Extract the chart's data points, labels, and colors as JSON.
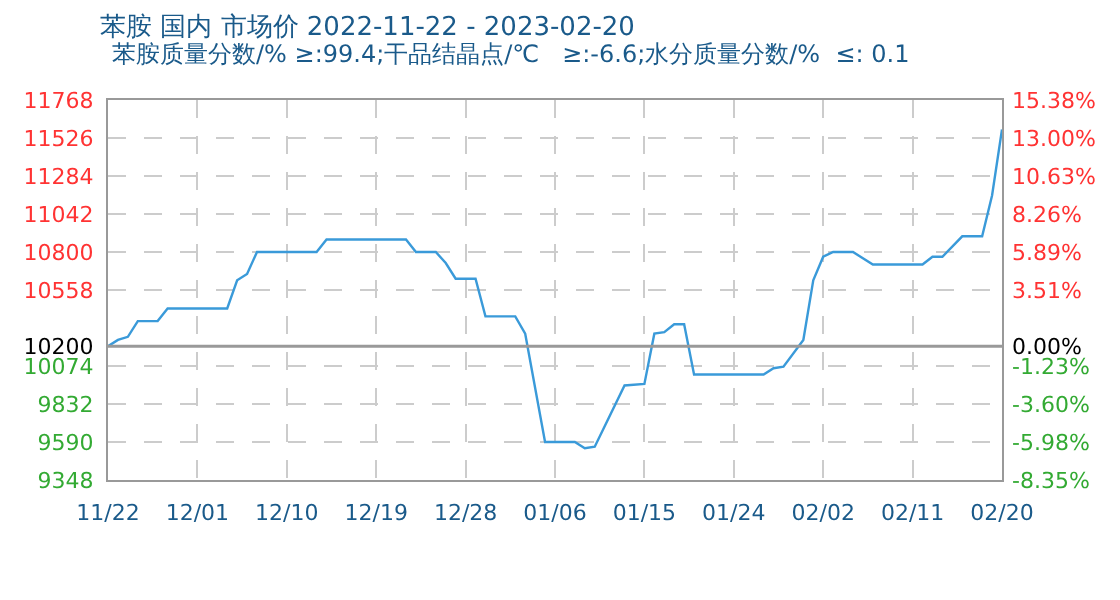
{
  "chart_data": {
    "type": "line",
    "title": "苯胺 国内 市场价 2022-11-22 - 2023-02-20",
    "subtitle": "苯胺质量分数/% ≥:99.4;干品结晶点/℃   ≥:-6.6;水分质量分数/%  ≤: 0.1",
    "x": [
      "2022-11-22",
      "2022-11-23",
      "2022-11-24",
      "2022-11-25",
      "2022-11-27",
      "2022-11-28",
      "2022-12-04",
      "2022-12-05",
      "2022-12-06",
      "2022-12-07",
      "2022-12-13",
      "2022-12-14",
      "2022-12-22",
      "2022-12-23",
      "2022-12-25",
      "2022-12-26",
      "2022-12-27",
      "2022-12-29",
      "2022-12-30",
      "2023-01-02",
      "2023-01-03",
      "2023-01-05",
      "2023-01-08",
      "2023-01-09",
      "2023-01-10",
      "2023-01-13",
      "2023-01-15",
      "2023-01-16",
      "2023-01-17",
      "2023-01-18",
      "2023-01-19",
      "2023-01-20",
      "2023-01-27",
      "2023-01-28",
      "2023-01-29",
      "2023-01-31",
      "2023-02-01",
      "2023-02-02",
      "2023-02-03",
      "2023-02-05",
      "2023-02-07",
      "2023-02-12",
      "2023-02-13",
      "2023-02-14",
      "2023-02-16",
      "2023-02-18",
      "2023-02-19",
      "2023-02-20"
    ],
    "series": [
      {
        "color": "#3a9ad9",
        "values": [
          10200,
          10240,
          10260,
          10360,
          10360,
          10440,
          10440,
          10620,
          10660,
          10800,
          10800,
          10880,
          10880,
          10800,
          10800,
          10730,
          10630,
          10630,
          10390,
          10390,
          10280,
          9590,
          9590,
          9550,
          9560,
          9950,
          9960,
          10280,
          10290,
          10340,
          10340,
          10020,
          10020,
          10060,
          10070,
          10240,
          10620,
          10770,
          10800,
          10800,
          10720,
          10720,
          10770,
          10770,
          10900,
          10900,
          11160,
          11580
        ]
      }
    ],
    "xlim": [
      "2022-11-22",
      "2023-02-20"
    ],
    "xticks": [
      {
        "value": "2022-11-22",
        "label": "11/22"
      },
      {
        "value": "2022-12-01",
        "label": "12/01"
      },
      {
        "value": "2022-12-10",
        "label": "12/10"
      },
      {
        "value": "2022-12-19",
        "label": "12/19"
      },
      {
        "value": "2022-12-28",
        "label": "12/28"
      },
      {
        "value": "2023-01-06",
        "label": "01/06"
      },
      {
        "value": "2023-01-15",
        "label": "01/15"
      },
      {
        "value": "2023-01-24",
        "label": "01/24"
      },
      {
        "value": "2023-02-02",
        "label": "02/02"
      },
      {
        "value": "2023-02-11",
        "label": "02/11"
      },
      {
        "value": "2023-02-20",
        "label": "02/20"
      }
    ],
    "ylim": [
      9348,
      11768
    ],
    "yticks": [
      9348,
      9590,
      9832,
      10074,
      10200,
      10558,
      10800,
      11042,
      11284,
      11526,
      11768
    ],
    "y2lim": [
      -8.35,
      15.38
    ],
    "y2ticks": [
      {
        "value": -8.35,
        "label": "-8.35%"
      },
      {
        "value": -5.98,
        "label": "-5.98%"
      },
      {
        "value": -3.6,
        "label": "-3.60%"
      },
      {
        "value": -1.23,
        "label": "-1.23%"
      },
      {
        "value": 0,
        "label": "0.00%"
      },
      {
        "value": 3.51,
        "label": "3.51%"
      },
      {
        "value": 5.89,
        "label": "5.89%"
      },
      {
        "value": 8.26,
        "label": "8.26%"
      },
      {
        "value": 10.63,
        "label": "10.63%"
      },
      {
        "value": 13.0,
        "label": "13.00%"
      },
      {
        "value": 15.38,
        "label": "15.38%"
      }
    ],
    "ref_lines": [
      {
        "axis": "y",
        "value": 10200,
        "color": "#999999"
      }
    ],
    "grid": true,
    "marker": "none",
    "line_style": "solid"
  }
}
